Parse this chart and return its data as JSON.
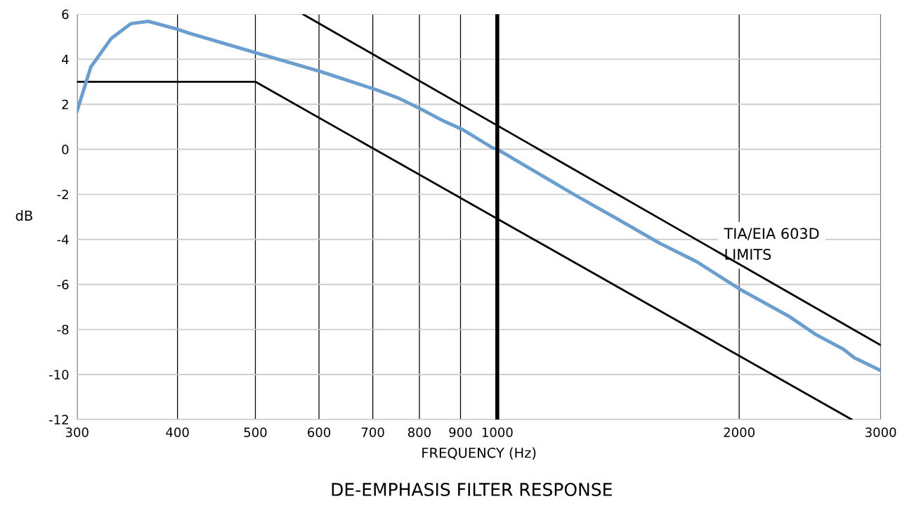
{
  "chart_data": {
    "type": "line",
    "title": "DE-EMPHASIS FILTER RESPONSE",
    "xlabel": "FREQUENCY (Hz)",
    "ylabel": "dB",
    "log": "x",
    "grid": true,
    "marker": "none",
    "line_style": "solid",
    "xlim": [
      300,
      3000
    ],
    "ylim": [
      -12,
      6
    ],
    "xticks": [
      300,
      400,
      500,
      600,
      700,
      800,
      900,
      1000,
      2000,
      3000
    ],
    "yticks": [
      -12,
      -10,
      -8,
      -6,
      -4,
      -2,
      0,
      2,
      4,
      6
    ],
    "series": [
      {
        "color": "#6a9ecf",
        "x": [
          300,
          312,
          331,
          350,
          368,
          400,
          414,
          506,
          603,
          706,
          756,
          804,
          857,
          906,
          987,
          1000,
          1245,
          1410,
          1594,
          1770,
          2001,
          2307,
          2495,
          2691,
          2782,
          3000
        ],
        "values": [
          1.7,
          3.65,
          4.93,
          5.58,
          5.68,
          5.33,
          5.15,
          4.24,
          3.45,
          2.65,
          2.25,
          1.78,
          1.26,
          0.87,
          0.06,
          0.0,
          -2.0,
          -3.09,
          -4.18,
          -4.99,
          -6.2,
          -7.42,
          -8.24,
          -8.86,
          -9.26,
          -9.83
        ]
      },
      {
        "color": "#000000",
        "x": [
          573,
          3000
        ],
        "values": [
          6,
          -8.7
        ]
      },
      {
        "color": "#000000",
        "x": [
          300,
          500,
          2760
        ],
        "values": [
          3,
          3,
          -12
        ]
      }
    ],
    "ref_lines": [
      {
        "axis": "x",
        "value": 1000,
        "color": "#000000"
      }
    ],
    "annotations": [
      "TIA/EIA 603D\nLIMITS"
    ]
  }
}
